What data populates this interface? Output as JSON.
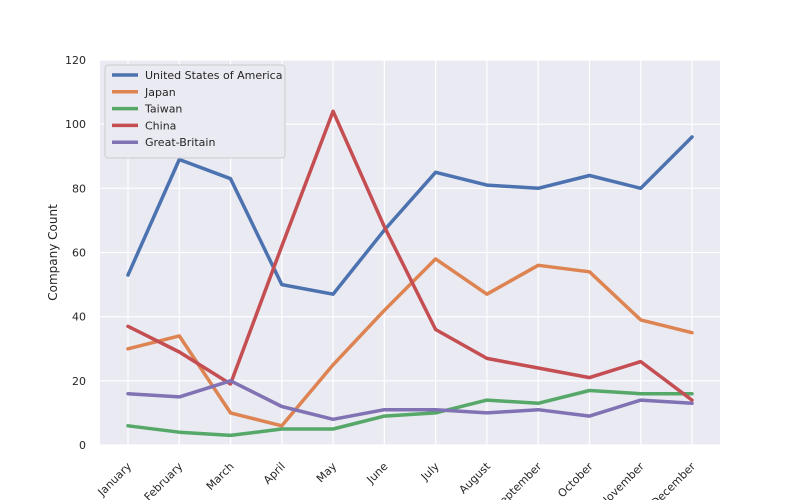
{
  "chart_data": {
    "type": "line",
    "title": "",
    "xlabel": "",
    "ylabel": "Company Count",
    "categories": [
      "January",
      "February",
      "March",
      "April",
      "May",
      "June",
      "July",
      "August",
      "September",
      "October",
      "November",
      "December"
    ],
    "ylim": [
      0,
      120
    ],
    "yticks": [
      0,
      20,
      40,
      60,
      80,
      100,
      120
    ],
    "grid": true,
    "legend_position": "top-left",
    "series": [
      {
        "name": "United States of America",
        "color": "#4c72b0",
        "values": [
          53,
          89,
          83,
          50,
          47,
          67,
          85,
          81,
          80,
          84,
          80,
          96
        ]
      },
      {
        "name": "Japan",
        "color": "#dd8452",
        "values": [
          30,
          34,
          10,
          6,
          25,
          42,
          58,
          47,
          56,
          54,
          39,
          35
        ]
      },
      {
        "name": "Taiwan",
        "color": "#55a868",
        "values": [
          6,
          4,
          3,
          5,
          5,
          9,
          10,
          14,
          13,
          17,
          16,
          16
        ]
      },
      {
        "name": "China",
        "color": "#c44e52",
        "values": [
          37,
          29,
          19,
          62,
          104,
          68,
          36,
          27,
          24,
          21,
          26,
          14
        ]
      },
      {
        "name": "Great-Britain",
        "color": "#8172b3",
        "values": [
          16,
          15,
          20,
          12,
          8,
          11,
          11,
          10,
          11,
          9,
          14,
          13
        ]
      }
    ]
  }
}
